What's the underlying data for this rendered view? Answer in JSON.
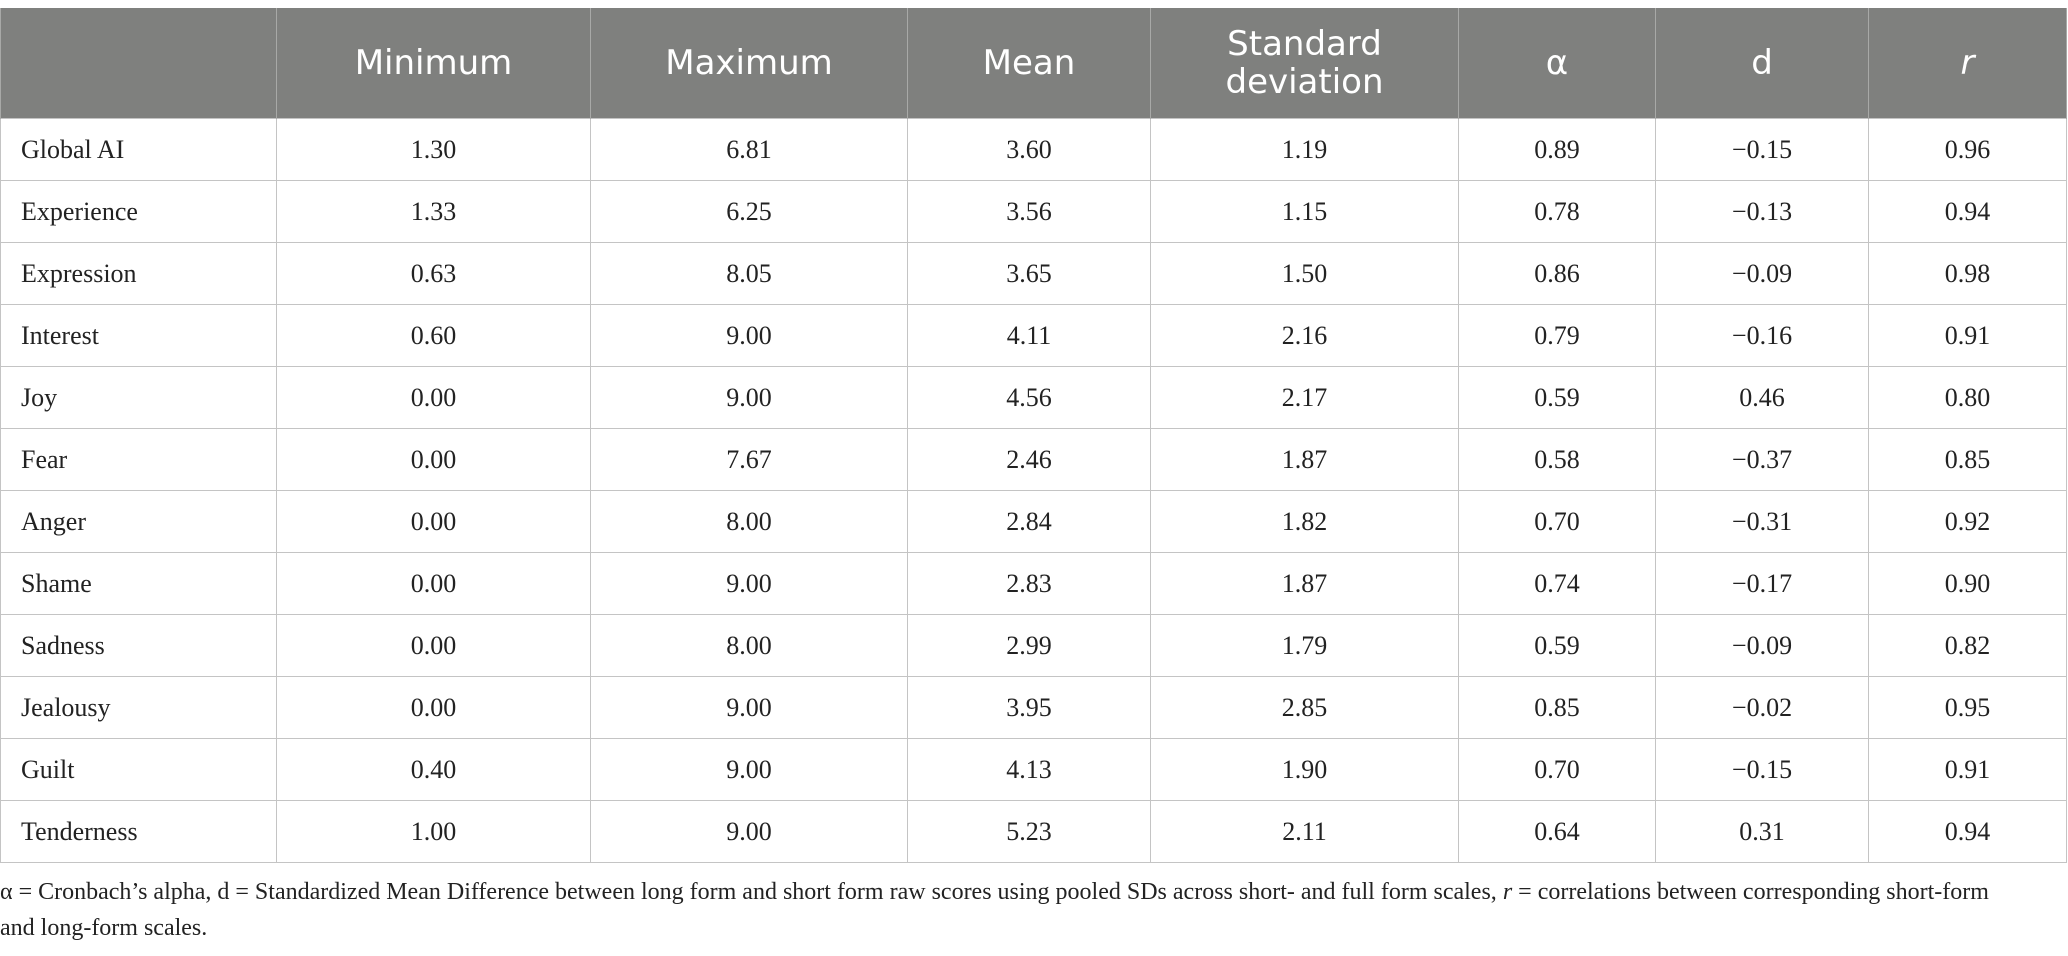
{
  "table": {
    "columns": [
      "",
      "Minimum",
      "Maximum",
      "Mean",
      "Standard deviation",
      "α",
      "d",
      "r"
    ],
    "rows": [
      {
        "label": "Global AI",
        "values": [
          "1.30",
          "6.81",
          "3.60",
          "1.19",
          "0.89",
          "−0.15",
          "0.96"
        ]
      },
      {
        "label": "Experience",
        "values": [
          "1.33",
          "6.25",
          "3.56",
          "1.15",
          "0.78",
          "−0.13",
          "0.94"
        ]
      },
      {
        "label": "Expression",
        "values": [
          "0.63",
          "8.05",
          "3.65",
          "1.50",
          "0.86",
          "−0.09",
          "0.98"
        ]
      },
      {
        "label": "Interest",
        "values": [
          "0.60",
          "9.00",
          "4.11",
          "2.16",
          "0.79",
          "−0.16",
          "0.91"
        ]
      },
      {
        "label": "Joy",
        "values": [
          "0.00",
          "9.00",
          "4.56",
          "2.17",
          "0.59",
          "0.46",
          "0.80"
        ]
      },
      {
        "label": "Fear",
        "values": [
          "0.00",
          "7.67",
          "2.46",
          "1.87",
          "0.58",
          "−0.37",
          "0.85"
        ]
      },
      {
        "label": "Anger",
        "values": [
          "0.00",
          "8.00",
          "2.84",
          "1.82",
          "0.70",
          "−0.31",
          "0.92"
        ]
      },
      {
        "label": "Shame",
        "values": [
          "0.00",
          "9.00",
          "2.83",
          "1.87",
          "0.74",
          "−0.17",
          "0.90"
        ]
      },
      {
        "label": "Sadness",
        "values": [
          "0.00",
          "8.00",
          "2.99",
          "1.79",
          "0.59",
          "−0.09",
          "0.82"
        ]
      },
      {
        "label": "Jealousy",
        "values": [
          "0.00",
          "9.00",
          "3.95",
          "2.85",
          "0.85",
          "−0.02",
          "0.95"
        ]
      },
      {
        "label": "Guilt",
        "values": [
          "0.40",
          "9.00",
          "4.13",
          "1.90",
          "0.70",
          "−0.15",
          "0.91"
        ]
      },
      {
        "label": "Tenderness",
        "values": [
          "1.00",
          "9.00",
          "5.23",
          "2.11",
          "0.64",
          "0.31",
          "0.94"
        ]
      }
    ]
  },
  "note": {
    "part1": "α = Cronbach’s alpha, d = Standardized Mean Difference between long form and short form raw scores using pooled SDs across short- and full form scales, ",
    "r_symbol": "r",
    "part2": " = correlations between corresponding short-form and long-form scales."
  },
  "colors": {
    "header_bg": "#7f807e",
    "header_text": "#ffffff",
    "grid": "#c4c4c4"
  }
}
